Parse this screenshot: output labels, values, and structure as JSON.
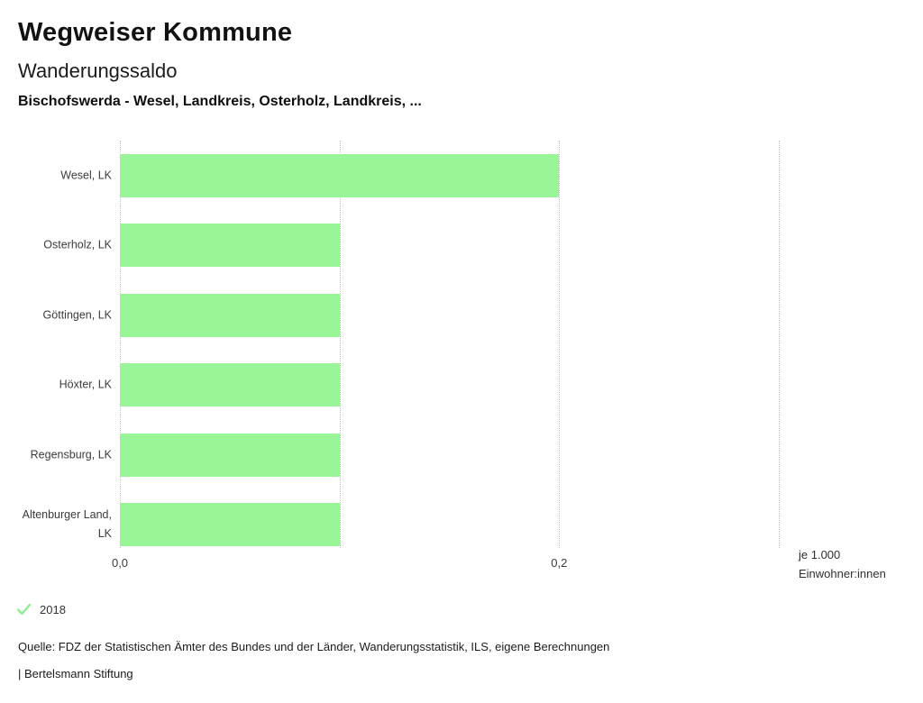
{
  "header": {
    "title": "Wegweiser Kommune",
    "subtitle": "Wanderungssaldo",
    "comparison": "Bischofswerda - Wesel, Landkreis, Osterholz, Landkreis, ..."
  },
  "chart_data": {
    "type": "bar",
    "orientation": "horizontal",
    "title": "Wanderungssaldo",
    "categories": [
      "Wesel, LK",
      "Osterholz, LK",
      "Göttingen, LK",
      "Höxter, LK",
      "Regensburg, LK",
      "Altenburger Land, LK"
    ],
    "series": [
      {
        "name": "2018",
        "values": [
          0.2,
          0.1,
          0.1,
          0.1,
          0.1,
          0.1
        ]
      }
    ],
    "xlim": [
      0,
      0.3
    ],
    "xticks": [
      0,
      0.1,
      0.2,
      0.3
    ],
    "xtick_labels": [
      "0,0",
      "",
      "0,2",
      ""
    ],
    "grid": "vertical-dotted",
    "legend_position": "bottom-left",
    "bar_color": "#98f598",
    "unit_label_lines": [
      "je 1.000",
      "Einwohner:innen"
    ]
  },
  "legend": {
    "label": "2018",
    "check_icon": "check",
    "check_color": "#90ee90"
  },
  "footer": {
    "source": "Quelle: FDZ der Statistischen Ämter des Bundes und der Länder, Wanderungsstatistik, ILS, eigene Berechnungen",
    "attribution": "| Bertelsmann Stiftung"
  }
}
